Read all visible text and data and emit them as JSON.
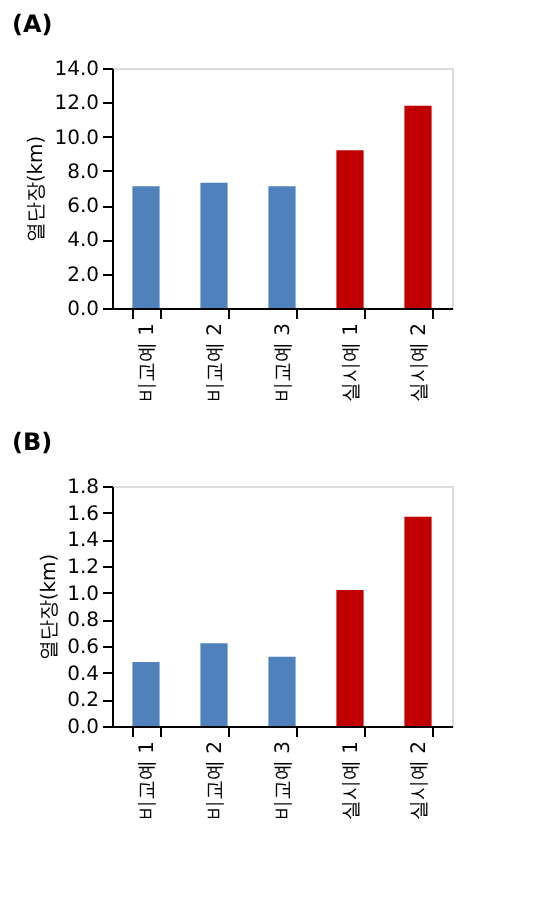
{
  "chart_data": [
    {
      "type": "bar",
      "title": "(A)",
      "ylabel": "열단장(km)",
      "categories": [
        "비교예 1",
        "비교예 2",
        "비교예 3",
        "실시예 1",
        "실시예 2"
      ],
      "values": [
        7.1,
        7.3,
        7.1,
        9.2,
        11.8
      ],
      "colors": [
        "#4f81bd",
        "#4f81bd",
        "#4f81bd",
        "#c00000",
        "#c00000"
      ],
      "ylim": [
        0,
        14
      ],
      "yticks": [
        {
          "value": 0,
          "label": "0.0"
        },
        {
          "value": 2,
          "label": "2.0"
        },
        {
          "value": 4,
          "label": "4.0"
        },
        {
          "value": 6,
          "label": "6.0"
        },
        {
          "value": 8,
          "label": "8.0"
        },
        {
          "value": 10,
          "label": "10.0"
        },
        {
          "value": 12,
          "label": "12.0"
        },
        {
          "value": 14,
          "label": "14.0"
        }
      ],
      "grid": false
    },
    {
      "type": "bar",
      "title": "(B)",
      "ylabel": "열단장(km)",
      "categories": [
        "비교예 1",
        "비교예 2",
        "비교예 3",
        "실시예 1",
        "실시예 2"
      ],
      "values": [
        0.48,
        0.62,
        0.52,
        1.02,
        1.57
      ],
      "colors": [
        "#4f81bd",
        "#4f81bd",
        "#4f81bd",
        "#c00000",
        "#c00000"
      ],
      "ylim": [
        0,
        1.8
      ],
      "yticks": [
        {
          "value": 0,
          "label": "0.0"
        },
        {
          "value": 0.2,
          "label": "0.2"
        },
        {
          "value": 0.4,
          "label": "0.4"
        },
        {
          "value": 0.6,
          "label": "0.6"
        },
        {
          "value": 0.8,
          "label": "0.8"
        },
        {
          "value": 1.0,
          "label": "1.0"
        },
        {
          "value": 1.2,
          "label": "1.2"
        },
        {
          "value": 1.4,
          "label": "1.4"
        },
        {
          "value": 1.6,
          "label": "1.6"
        },
        {
          "value": 1.8,
          "label": "1.8"
        }
      ],
      "grid": false
    }
  ]
}
